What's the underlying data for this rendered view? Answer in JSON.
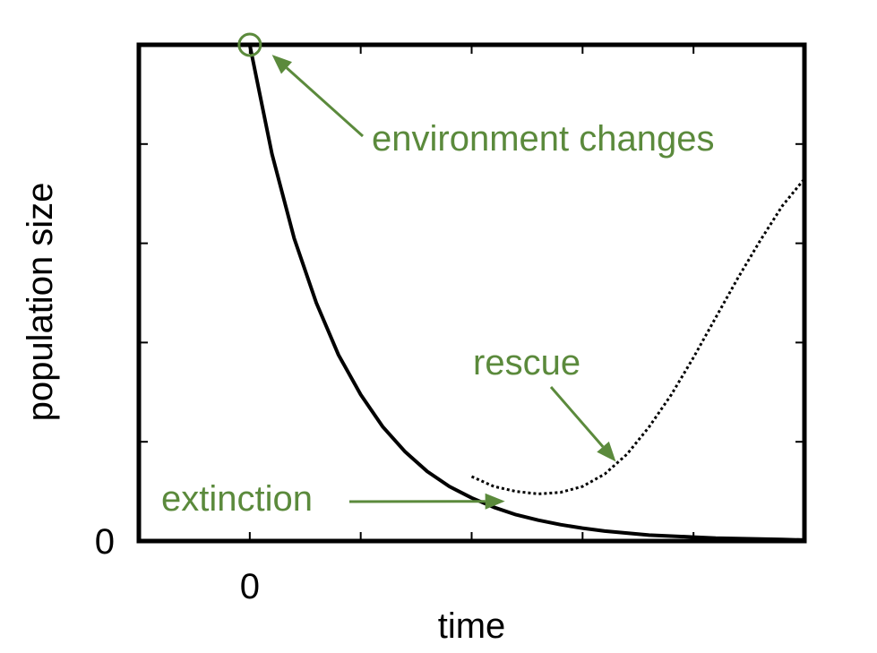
{
  "chart_data": {
    "type": "line",
    "xlabel": "time",
    "ylabel": "population size",
    "x_tick_labels": [
      {
        "x": 0,
        "label": "0"
      }
    ],
    "y_tick_labels": [
      {
        "y": 0,
        "label": "0"
      }
    ],
    "xlim": [
      -5,
      25
    ],
    "ylim": [
      0,
      10
    ],
    "grid": false,
    "series": [
      {
        "style": "solid",
        "x": [
          -5,
          0
        ],
        "y": [
          10,
          10
        ]
      },
      {
        "style": "solid",
        "x": [
          0,
          1,
          2,
          3,
          4,
          5,
          6,
          7,
          8,
          9,
          10,
          11,
          12,
          13,
          14,
          15,
          16,
          17,
          18,
          19,
          20,
          21,
          22,
          23,
          24,
          25
        ],
        "y": [
          10,
          7.8,
          6.1,
          4.8,
          3.75,
          2.95,
          2.3,
          1.8,
          1.4,
          1.1,
          0.87,
          0.68,
          0.53,
          0.42,
          0.33,
          0.26,
          0.2,
          0.16,
          0.12,
          0.1,
          0.08,
          0.06,
          0.05,
          0.04,
          0.03,
          0.02
        ]
      },
      {
        "style": "dotted",
        "x": [
          10,
          11,
          12,
          13,
          14,
          15,
          16,
          17,
          18,
          19,
          20,
          21,
          22,
          23,
          24,
          25
        ],
        "y": [
          1.3,
          1.1,
          1.0,
          0.95,
          0.98,
          1.1,
          1.35,
          1.75,
          2.3,
          2.95,
          3.7,
          4.5,
          5.3,
          6.05,
          6.75,
          7.3
        ]
      }
    ],
    "markers": [
      {
        "x": 0,
        "y": 10,
        "shape": "open-circle"
      }
    ],
    "annotations": [
      {
        "text": "environment changes",
        "target_x": 1,
        "target_y": 9.8
      },
      {
        "text": "rescue",
        "target_x": 16.5,
        "target_y": 1.6
      },
      {
        "text": "extinction",
        "target_x": 11.5,
        "target_y": 0.8
      }
    ],
    "colors": {
      "line": "#000000",
      "annotation": "#5b8a3c",
      "axis": "#000000"
    }
  }
}
